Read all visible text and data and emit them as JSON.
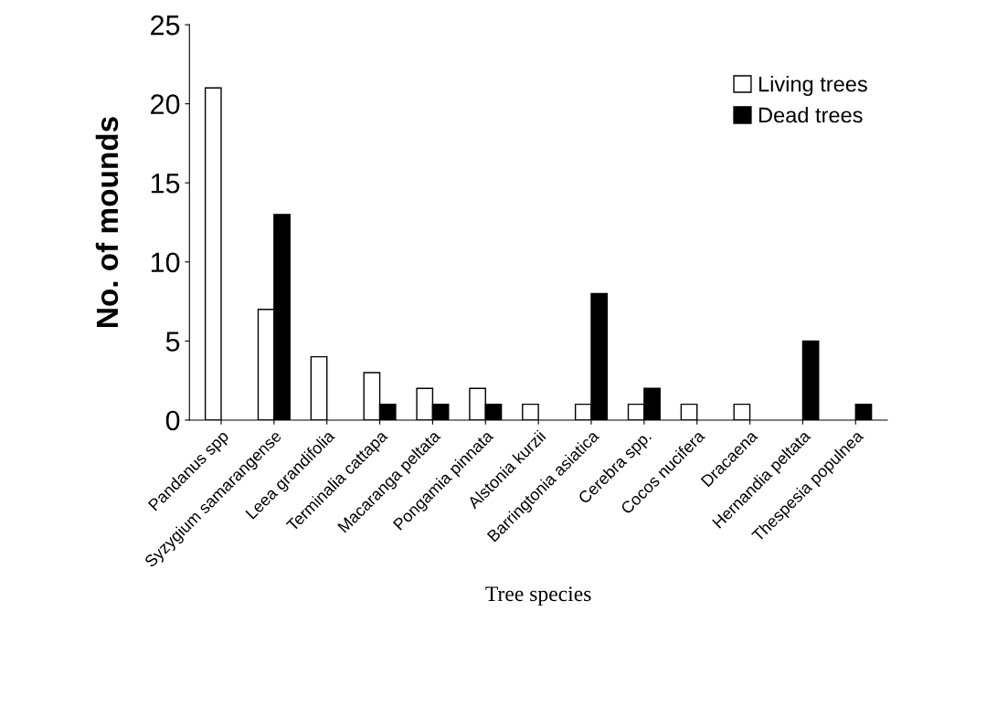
{
  "chart_data": {
    "type": "bar",
    "xlabel": "Tree species",
    "ylabel": "No. of mounds",
    "categories": [
      "Pandanus spp",
      "Syzygium samarangense",
      "Leea grandifolia",
      "Terminalia cattapa",
      "Macaranga peltata",
      "Pongamia pinnata",
      "Alstonia kurzii",
      "Barringtonia asiatica",
      "Cerebra spp.",
      "Cocos nucifera",
      "Dracaena",
      "Hernandia peltata",
      "Thespesia populnea"
    ],
    "series": [
      {
        "name": "Living trees",
        "color": "#ffffff",
        "values": [
          21,
          7,
          4,
          3,
          2,
          2,
          1,
          1,
          1,
          1,
          1,
          null,
          null
        ]
      },
      {
        "name": "Dead trees",
        "color": "#000000",
        "values": [
          null,
          13,
          null,
          1,
          1,
          1,
          null,
          8,
          2,
          null,
          null,
          5,
          1
        ]
      }
    ],
    "ylim": [
      0,
      25
    ],
    "yticks": [
      0,
      5,
      10,
      15,
      20,
      25
    ],
    "grid": false,
    "legend": "top right"
  }
}
